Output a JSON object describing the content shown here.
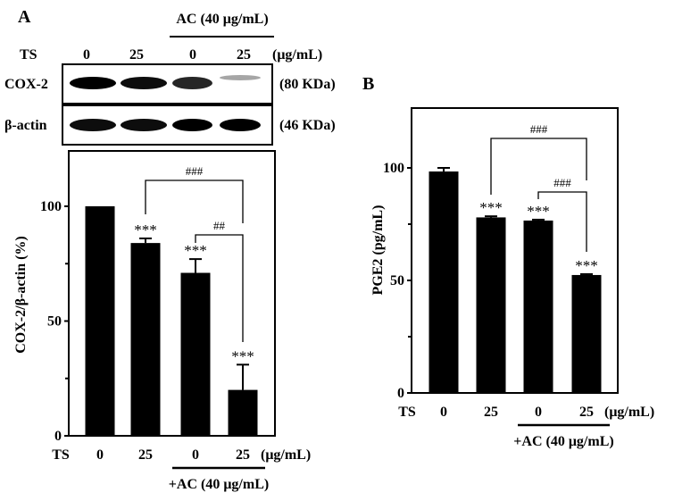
{
  "panel_a": {
    "label": "A",
    "blot": {
      "treatment_header": "AC (40 μg/mL)",
      "row_label": "TS",
      "doses": [
        "0",
        "25",
        "0",
        "25"
      ],
      "unit": "(μg/mL)",
      "rows": [
        {
          "name": "COX-2",
          "size": "(80 KDa)",
          "intensity": [
            1.0,
            0.95,
            0.85,
            0.3
          ]
        },
        {
          "name": "β-actin",
          "size": "(46 KDa)",
          "intensity": [
            0.95,
            0.95,
            1.0,
            1.0
          ]
        }
      ]
    }
  },
  "panel_b": {
    "label": "B"
  },
  "chart_data": [
    {
      "type": "bar",
      "ylabel": "COX-2/β-actin (%)",
      "ylim": [
        0,
        125
      ],
      "yticks": [
        0,
        50,
        100
      ],
      "yminor": [
        25,
        75
      ],
      "x_row_label": "TS",
      "categories": [
        "0",
        "25",
        "0",
        "25"
      ],
      "x_unit": "(μg/mL)",
      "group_label": "+AC (40 μg/mL)",
      "values": [
        100,
        84,
        71,
        20
      ],
      "errors": [
        0,
        2,
        6,
        11
      ],
      "annotations": [
        "",
        "***",
        "***",
        "***"
      ],
      "comparisons": [
        {
          "from": 1,
          "to": 3,
          "label": "###"
        },
        {
          "from": 2,
          "to": 3,
          "label": "##"
        }
      ]
    },
    {
      "type": "bar",
      "ylabel": "PGE2 (pg/mL)",
      "ylim": [
        0,
        126
      ],
      "yticks": [
        0,
        50,
        100
      ],
      "yminor": [
        25,
        75
      ],
      "x_row_label": "TS",
      "categories": [
        "0",
        "25",
        "0",
        "25"
      ],
      "x_unit": "(μg/mL)",
      "group_label": "+AC (40 μg/mL)",
      "values": [
        98.4,
        78,
        76.6,
        52.4
      ],
      "errors": [
        1.6,
        0.5,
        0.4,
        0.4
      ],
      "annotations": [
        "",
        "***",
        "***",
        "***"
      ],
      "comparisons": [
        {
          "from": 1,
          "to": 3,
          "label": "###"
        },
        {
          "from": 2,
          "to": 3,
          "label": "###"
        }
      ]
    }
  ]
}
